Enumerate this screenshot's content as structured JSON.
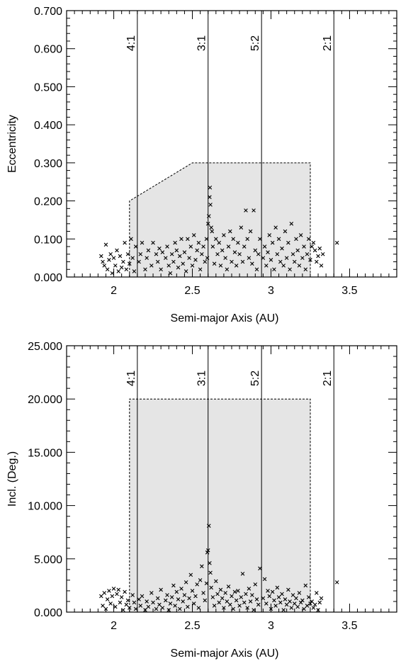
{
  "chart_data": [
    {
      "type": "scatter",
      "xlabel": "Semi-major Axis (AU)",
      "ylabel": "Eccentricity",
      "xlim": [
        1.7,
        3.8
      ],
      "ylim": [
        0.0,
        0.7
      ],
      "x_ticks": [
        "2",
        "2.5",
        "3",
        "3.5"
      ],
      "y_ticks": [
        "0.000",
        "0.100",
        "0.200",
        "0.300",
        "0.400",
        "0.500",
        "0.600",
        "0.700"
      ],
      "marker": "x",
      "marker_color": "#000000",
      "region_fill": "#e5e5e5",
      "region": [
        [
          2.1,
          0.0
        ],
        [
          2.1,
          0.2
        ],
        [
          2.5,
          0.3
        ],
        [
          3.25,
          0.3
        ],
        [
          3.25,
          0.0
        ]
      ],
      "resonances": [
        {
          "label": "4:1",
          "a": 2.15
        },
        {
          "label": "3:1",
          "a": 2.6
        },
        {
          "label": "5:2",
          "a": 2.94
        },
        {
          "label": "2:1",
          "a": 3.4
        }
      ],
      "points": [
        [
          1.92,
          0.055
        ],
        [
          1.93,
          0.04
        ],
        [
          1.94,
          0.03
        ],
        [
          1.95,
          0.085
        ],
        [
          1.96,
          0.02
        ],
        [
          1.97,
          0.045
        ],
        [
          1.98,
          0.06
        ],
        [
          1.99,
          0.01
        ],
        [
          2.0,
          0.05
        ],
        [
          2.01,
          0.03
        ],
        [
          2.02,
          0.07
        ],
        [
          2.03,
          0.015
        ],
        [
          2.04,
          0.055
        ],
        [
          2.05,
          0.025
        ],
        [
          2.06,
          0.04
        ],
        [
          2.07,
          0.09
        ],
        [
          2.08,
          0.02
        ],
        [
          2.09,
          0.06
        ],
        [
          2.1,
          0.035
        ],
        [
          2.11,
          0.1
        ],
        [
          2.12,
          0.05
        ],
        [
          2.13,
          0.015
        ],
        [
          2.14,
          0.08
        ],
        [
          2.16,
          0.04
        ],
        [
          2.17,
          0.06
        ],
        [
          2.18,
          0.09
        ],
        [
          2.2,
          0.02
        ],
        [
          2.21,
          0.05
        ],
        [
          2.22,
          0.07
        ],
        [
          2.24,
          0.03
        ],
        [
          2.25,
          0.09
        ],
        [
          2.27,
          0.06
        ],
        [
          2.28,
          0.04
        ],
        [
          2.29,
          0.075
        ],
        [
          2.3,
          0.02
        ],
        [
          2.31,
          0.065
        ],
        [
          2.33,
          0.05
        ],
        [
          2.34,
          0.08
        ],
        [
          2.35,
          0.03
        ],
        [
          2.36,
          0.01
        ],
        [
          2.37,
          0.06
        ],
        [
          2.38,
          0.04
        ],
        [
          2.39,
          0.09
        ],
        [
          2.4,
          0.07
        ],
        [
          2.41,
          0.025
        ],
        [
          2.42,
          0.055
        ],
        [
          2.43,
          0.1
        ],
        [
          2.44,
          0.035
        ],
        [
          2.45,
          0.065
        ],
        [
          2.46,
          0.015
        ],
        [
          2.47,
          0.1
        ],
        [
          2.48,
          0.05
        ],
        [
          2.49,
          0.08
        ],
        [
          2.5,
          0.03
        ],
        [
          2.51,
          0.11
        ],
        [
          2.52,
          0.045
        ],
        [
          2.53,
          0.07
        ],
        [
          2.54,
          0.09
        ],
        [
          2.55,
          0.02
        ],
        [
          2.56,
          0.06
        ],
        [
          2.57,
          0.08
        ],
        [
          2.58,
          0.04
        ],
        [
          2.59,
          0.1
        ],
        [
          2.595,
          0.05
        ],
        [
          2.6,
          0.14
        ],
        [
          2.605,
          0.16
        ],
        [
          2.61,
          0.21
        ],
        [
          2.612,
          0.235
        ],
        [
          2.615,
          0.19
        ],
        [
          2.62,
          0.13
        ],
        [
          2.625,
          0.12
        ],
        [
          2.63,
          0.08
        ],
        [
          2.64,
          0.035
        ],
        [
          2.65,
          0.1
        ],
        [
          2.66,
          0.06
        ],
        [
          2.67,
          0.09
        ],
        [
          2.68,
          0.03
        ],
        [
          2.69,
          0.07
        ],
        [
          2.7,
          0.11
        ],
        [
          2.71,
          0.05
        ],
        [
          2.72,
          0.02
        ],
        [
          2.73,
          0.08
        ],
        [
          2.74,
          0.12
        ],
        [
          2.75,
          0.04
        ],
        [
          2.76,
          0.1
        ],
        [
          2.77,
          0.065
        ],
        [
          2.78,
          0.03
        ],
        [
          2.79,
          0.09
        ],
        [
          2.8,
          0.06
        ],
        [
          2.81,
          0.13
        ],
        [
          2.82,
          0.04
        ],
        [
          2.83,
          0.08
        ],
        [
          2.84,
          0.175
        ],
        [
          2.85,
          0.1
        ],
        [
          2.86,
          0.05
        ],
        [
          2.87,
          0.12
        ],
        [
          2.88,
          0.035
        ],
        [
          2.89,
          0.175
        ],
        [
          2.9,
          0.07
        ],
        [
          2.91,
          0.02
        ],
        [
          2.92,
          0.06
        ],
        [
          2.93,
          0.1
        ],
        [
          2.95,
          0.05
        ],
        [
          2.96,
          0.08
        ],
        [
          2.97,
          0.03
        ],
        [
          2.98,
          0.065
        ],
        [
          2.99,
          0.11
        ],
        [
          3.0,
          0.045
        ],
        [
          3.01,
          0.09
        ],
        [
          3.02,
          0.02
        ],
        [
          3.03,
          0.13
        ],
        [
          3.04,
          0.06
        ],
        [
          3.05,
          0.1
        ],
        [
          3.06,
          0.04
        ],
        [
          3.07,
          0.075
        ],
        [
          3.08,
          0.03
        ],
        [
          3.09,
          0.12
        ],
        [
          3.1,
          0.05
        ],
        [
          3.11,
          0.09
        ],
        [
          3.12,
          0.02
        ],
        [
          3.13,
          0.14
        ],
        [
          3.14,
          0.06
        ],
        [
          3.15,
          0.04
        ],
        [
          3.16,
          0.1
        ],
        [
          3.17,
          0.07
        ],
        [
          3.18,
          0.03
        ],
        [
          3.19,
          0.11
        ],
        [
          3.2,
          0.05
        ],
        [
          3.21,
          0.08
        ],
        [
          3.22,
          0.02
        ],
        [
          3.23,
          0.06
        ],
        [
          3.24,
          0.1
        ],
        [
          3.25,
          0.045
        ],
        [
          3.26,
          0.08
        ],
        [
          3.27,
          0.09
        ],
        [
          3.28,
          0.07
        ],
        [
          3.29,
          0.04
        ],
        [
          3.3,
          0.055
        ],
        [
          3.31,
          0.075
        ],
        [
          3.32,
          0.03
        ],
        [
          3.33,
          0.06
        ],
        [
          3.42,
          0.09
        ]
      ]
    },
    {
      "type": "scatter",
      "xlabel": "Semi-major Axis (AU)",
      "ylabel": "Incl. (Deg.)",
      "xlim": [
        1.7,
        3.8
      ],
      "ylim": [
        0.0,
        25.0
      ],
      "x_ticks": [
        "2",
        "2.5",
        "3",
        "3.5"
      ],
      "y_ticks": [
        "0.000",
        "5.000",
        "10.000",
        "15.000",
        "20.000",
        "25.000"
      ],
      "marker": "x",
      "marker_color": "#000000",
      "region_fill": "#e5e5e5",
      "region": [
        [
          2.1,
          0.0
        ],
        [
          2.1,
          20.0
        ],
        [
          3.25,
          20.0
        ],
        [
          3.25,
          0.0
        ]
      ],
      "resonances": [
        {
          "label": "4:1",
          "a": 2.15
        },
        {
          "label": "3:1",
          "a": 2.6
        },
        {
          "label": "5:2",
          "a": 2.94
        },
        {
          "label": "2:1",
          "a": 3.4
        }
      ],
      "points": [
        [
          1.92,
          1.5
        ],
        [
          1.93,
          0.6
        ],
        [
          1.94,
          1.8
        ],
        [
          1.95,
          0.3
        ],
        [
          1.96,
          1.2
        ],
        [
          1.97,
          2.0
        ],
        [
          1.98,
          0.8
        ],
        [
          1.99,
          1.5
        ],
        [
          2.0,
          2.2
        ],
        [
          2.01,
          0.5
        ],
        [
          2.02,
          1.7
        ],
        [
          2.03,
          2.1
        ],
        [
          2.04,
          0.9
        ],
        [
          2.05,
          1.4
        ],
        [
          2.06,
          0.2
        ],
        [
          2.07,
          1.9
        ],
        [
          2.08,
          0.7
        ],
        [
          2.09,
          1.1
        ],
        [
          2.1,
          0.4
        ],
        [
          2.12,
          1.6
        ],
        [
          2.13,
          0.9
        ],
        [
          2.14,
          0.3
        ],
        [
          2.16,
          1.2
        ],
        [
          2.17,
          0.6
        ],
        [
          2.18,
          1.5
        ],
        [
          2.2,
          0.2
        ],
        [
          2.21,
          1.0
        ],
        [
          2.22,
          0.5
        ],
        [
          2.24,
          1.8
        ],
        [
          2.25,
          0.9
        ],
        [
          2.27,
          0.3
        ],
        [
          2.28,
          1.3
        ],
        [
          2.29,
          0.7
        ],
        [
          2.3,
          2.1
        ],
        [
          2.31,
          0.4
        ],
        [
          2.33,
          1.1
        ],
        [
          2.34,
          1.6
        ],
        [
          2.35,
          0.2
        ],
        [
          2.36,
          0.8
        ],
        [
          2.37,
          1.4
        ],
        [
          2.38,
          2.5
        ],
        [
          2.39,
          0.6
        ],
        [
          2.4,
          1.9
        ],
        [
          2.41,
          1.2
        ],
        [
          2.42,
          0.3
        ],
        [
          2.43,
          2.2
        ],
        [
          2.44,
          1.0
        ],
        [
          2.45,
          1.6
        ],
        [
          2.46,
          2.8
        ],
        [
          2.47,
          0.5
        ],
        [
          2.48,
          1.3
        ],
        [
          2.49,
          3.5
        ],
        [
          2.5,
          2.0
        ],
        [
          2.51,
          0.8
        ],
        [
          2.52,
          1.5
        ],
        [
          2.53,
          2.6
        ],
        [
          2.54,
          0.4
        ],
        [
          2.55,
          3.0
        ],
        [
          2.56,
          4.3
        ],
        [
          2.57,
          1.8
        ],
        [
          2.58,
          1.1
        ],
        [
          2.59,
          2.7
        ],
        [
          2.595,
          5.6
        ],
        [
          2.6,
          5.8
        ],
        [
          2.605,
          8.1
        ],
        [
          2.61,
          4.6
        ],
        [
          2.615,
          3.7
        ],
        [
          2.62,
          2.3
        ],
        [
          2.63,
          1.4
        ],
        [
          2.64,
          0.6
        ],
        [
          2.65,
          2.9
        ],
        [
          2.66,
          1.7
        ],
        [
          2.67,
          0.9
        ],
        [
          2.68,
          2.1
        ],
        [
          2.69,
          1.3
        ],
        [
          2.7,
          0.4
        ],
        [
          2.71,
          1.8
        ],
        [
          2.72,
          1.0
        ],
        [
          2.73,
          2.4
        ],
        [
          2.74,
          0.7
        ],
        [
          2.75,
          1.5
        ],
        [
          2.76,
          0.3
        ],
        [
          2.77,
          1.9
        ],
        [
          2.78,
          1.1
        ],
        [
          2.79,
          2.0
        ],
        [
          2.8,
          0.6
        ],
        [
          2.81,
          1.4
        ],
        [
          2.82,
          3.6
        ],
        [
          2.83,
          0.9
        ],
        [
          2.84,
          1.7
        ],
        [
          2.85,
          0.4
        ],
        [
          2.86,
          2.2
        ],
        [
          2.87,
          1.0
        ],
        [
          2.88,
          1.6
        ],
        [
          2.89,
          0.2
        ],
        [
          2.9,
          2.6
        ],
        [
          2.91,
          1.2
        ],
        [
          2.92,
          0.7
        ],
        [
          2.93,
          4.1
        ],
        [
          2.95,
          1.3
        ],
        [
          2.96,
          3.1
        ],
        [
          2.97,
          0.8
        ],
        [
          2.98,
          2.0
        ],
        [
          2.99,
          1.5
        ],
        [
          3.0,
          0.3
        ],
        [
          3.01,
          1.9
        ],
        [
          3.02,
          1.1
        ],
        [
          3.03,
          0.6
        ],
        [
          3.04,
          2.3
        ],
        [
          3.05,
          1.4
        ],
        [
          3.06,
          0.9
        ],
        [
          3.07,
          1.7
        ],
        [
          3.08,
          0.2
        ],
        [
          3.09,
          1.2
        ],
        [
          3.1,
          0.7
        ],
        [
          3.11,
          2.1
        ],
        [
          3.12,
          1.0
        ],
        [
          3.13,
          0.4
        ],
        [
          3.14,
          1.6
        ],
        [
          3.15,
          0.8
        ],
        [
          3.16,
          1.3
        ],
        [
          3.17,
          0.5
        ],
        [
          3.18,
          1.8
        ],
        [
          3.19,
          0.9
        ],
        [
          3.2,
          1.1
        ],
        [
          3.21,
          0.3
        ],
        [
          3.22,
          2.5
        ],
        [
          3.23,
          0.6
        ],
        [
          3.24,
          1.4
        ],
        [
          3.25,
          0.8
        ],
        [
          3.26,
          1.0
        ],
        [
          3.27,
          0.4
        ],
        [
          3.28,
          0.7
        ],
        [
          3.29,
          1.8
        ],
        [
          3.3,
          0.2
        ],
        [
          3.31,
          0.9
        ],
        [
          3.32,
          1.3
        ],
        [
          3.42,
          2.8
        ]
      ]
    }
  ]
}
